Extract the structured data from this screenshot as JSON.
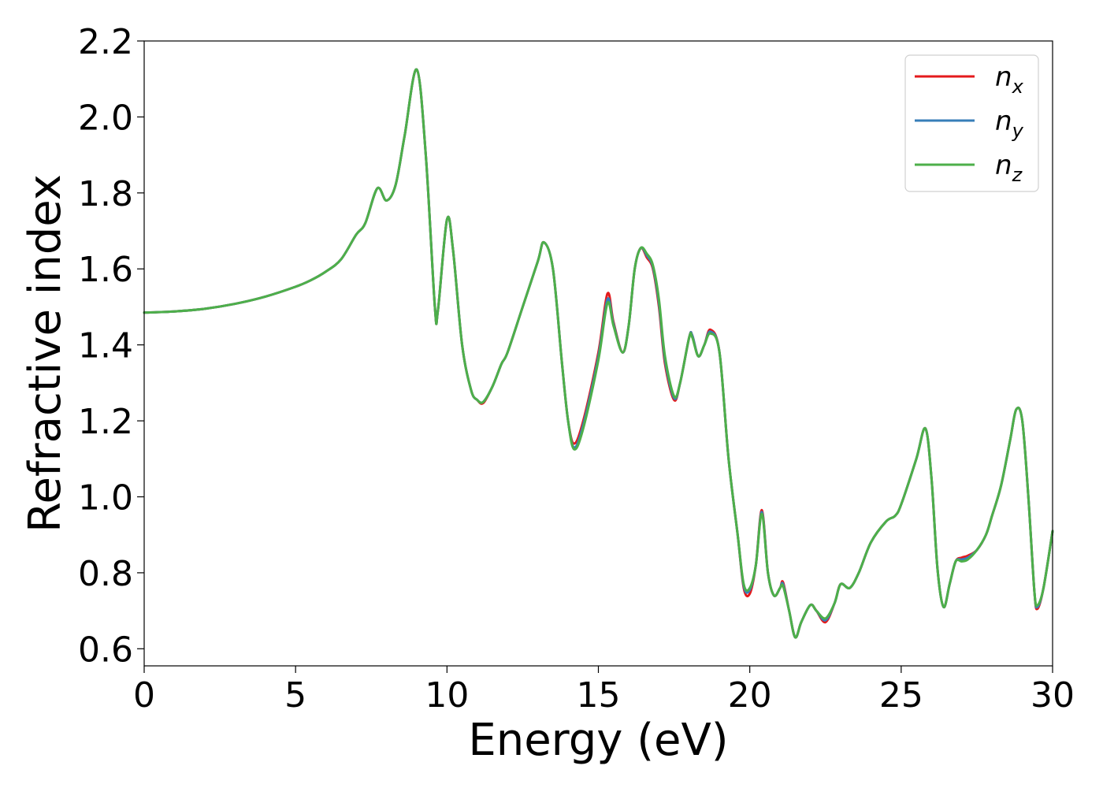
{
  "chart_data": {
    "type": "line",
    "title": "",
    "xlabel": "Energy (eV)",
    "ylabel": "Refractive index",
    "xlim": [
      0,
      30
    ],
    "ylim": [
      0.555,
      2.2
    ],
    "xticks": [
      "0",
      "5",
      "10",
      "15",
      "20",
      "25",
      "30"
    ],
    "yticks": [
      "0.6",
      "0.8",
      "1.0",
      "1.2",
      "1.4",
      "1.6",
      "1.8",
      "2.0",
      "2.2"
    ],
    "grid": false,
    "legend_position": "top-right",
    "series": [
      {
        "name": "n_x",
        "legend_base": "n",
        "legend_sub": "x",
        "color": "#e41a1c",
        "x": [
          0,
          1,
          2,
          3,
          4,
          5,
          5.5,
          6,
          6.5,
          7,
          7.3,
          7.7,
          8,
          8.3,
          8.6,
          9,
          9.3,
          9.6,
          9.7,
          10,
          10.2,
          10.5,
          10.8,
          11,
          11.2,
          11.5,
          11.8,
          12,
          12.5,
          13,
          13.2,
          13.5,
          13.8,
          14,
          14.2,
          14.5,
          15,
          15.3,
          15.5,
          15.8,
          16,
          16.2,
          16.4,
          16.6,
          16.8,
          17,
          17.2,
          17.5,
          17.7,
          18,
          18.1,
          18.3,
          18.5,
          18.7,
          19,
          19.3,
          19.6,
          19.8,
          20,
          20.2,
          20.4,
          20.6,
          20.8,
          21,
          21.1,
          21.3,
          21.5,
          21.7,
          22,
          22.2,
          22.5,
          22.8,
          23,
          23.3,
          23.6,
          24,
          24.5,
          24.8,
          25,
          25.5,
          25.8,
          26,
          26.2,
          26.4,
          26.6,
          26.8,
          27,
          27.2,
          27.5,
          27.8,
          28,
          28.3,
          28.6,
          28.8,
          29,
          29.2,
          29.4,
          29.5,
          29.7,
          30
        ],
        "y": [
          1.485,
          1.488,
          1.495,
          1.508,
          1.527,
          1.553,
          1.57,
          1.593,
          1.625,
          1.69,
          1.72,
          1.812,
          1.78,
          1.82,
          1.95,
          2.125,
          1.9,
          1.5,
          1.49,
          1.73,
          1.65,
          1.4,
          1.28,
          1.255,
          1.247,
          1.29,
          1.35,
          1.38,
          1.5,
          1.62,
          1.67,
          1.6,
          1.35,
          1.2,
          1.14,
          1.2,
          1.38,
          1.535,
          1.46,
          1.38,
          1.45,
          1.6,
          1.655,
          1.63,
          1.6,
          1.5,
          1.35,
          1.255,
          1.3,
          1.42,
          1.425,
          1.37,
          1.4,
          1.44,
          1.38,
          1.1,
          0.9,
          0.76,
          0.745,
          0.82,
          0.965,
          0.8,
          0.74,
          0.76,
          0.775,
          0.7,
          0.63,
          0.67,
          0.715,
          0.7,
          0.67,
          0.72,
          0.77,
          0.76,
          0.8,
          0.88,
          0.935,
          0.95,
          0.98,
          1.1,
          1.18,
          1.05,
          0.81,
          0.71,
          0.77,
          0.83,
          0.84,
          0.845,
          0.86,
          0.9,
          0.95,
          1.03,
          1.15,
          1.23,
          1.2,
          1.0,
          0.75,
          0.705,
          0.76,
          0.91
        ]
      },
      {
        "name": "n_y",
        "legend_base": "n",
        "legend_sub": "y",
        "color": "#377eb8",
        "x": [
          0,
          1,
          2,
          3,
          4,
          5,
          5.5,
          6,
          6.5,
          7,
          7.3,
          7.7,
          8,
          8.3,
          8.6,
          9,
          9.3,
          9.6,
          9.7,
          10,
          10.2,
          10.5,
          10.8,
          11,
          11.2,
          11.5,
          11.8,
          12,
          12.5,
          13,
          13.2,
          13.5,
          13.8,
          14,
          14.2,
          14.5,
          15,
          15.3,
          15.5,
          15.8,
          16,
          16.2,
          16.4,
          16.6,
          16.8,
          17,
          17.2,
          17.5,
          17.7,
          18,
          18.1,
          18.3,
          18.5,
          18.7,
          19,
          19.3,
          19.6,
          19.8,
          20,
          20.2,
          20.4,
          20.6,
          20.8,
          21,
          21.1,
          21.3,
          21.5,
          21.7,
          22,
          22.2,
          22.5,
          22.8,
          23,
          23.3,
          23.6,
          24,
          24.5,
          24.8,
          25,
          25.5,
          25.8,
          26,
          26.2,
          26.4,
          26.6,
          26.8,
          27,
          27.2,
          27.5,
          27.8,
          28,
          28.3,
          28.6,
          28.8,
          29,
          29.2,
          29.4,
          29.5,
          29.7,
          30
        ],
        "y": [
          1.485,
          1.488,
          1.495,
          1.508,
          1.527,
          1.553,
          1.57,
          1.593,
          1.625,
          1.69,
          1.72,
          1.812,
          1.78,
          1.82,
          1.95,
          2.125,
          1.9,
          1.5,
          1.49,
          1.73,
          1.65,
          1.4,
          1.28,
          1.255,
          1.25,
          1.29,
          1.35,
          1.38,
          1.5,
          1.62,
          1.67,
          1.6,
          1.35,
          1.2,
          1.13,
          1.19,
          1.37,
          1.52,
          1.455,
          1.38,
          1.45,
          1.6,
          1.655,
          1.635,
          1.605,
          1.51,
          1.36,
          1.26,
          1.3,
          1.42,
          1.425,
          1.37,
          1.4,
          1.435,
          1.38,
          1.1,
          0.9,
          0.765,
          0.755,
          0.82,
          0.96,
          0.8,
          0.74,
          0.76,
          0.77,
          0.7,
          0.63,
          0.67,
          0.715,
          0.7,
          0.675,
          0.72,
          0.77,
          0.76,
          0.8,
          0.88,
          0.935,
          0.95,
          0.98,
          1.1,
          1.18,
          1.05,
          0.81,
          0.71,
          0.77,
          0.83,
          0.835,
          0.84,
          0.86,
          0.9,
          0.95,
          1.03,
          1.15,
          1.23,
          1.2,
          1.0,
          0.75,
          0.71,
          0.76,
          0.91
        ]
      },
      {
        "name": "n_z",
        "legend_base": "n",
        "legend_sub": "z",
        "color": "#4daf4a",
        "x": [
          0,
          1,
          2,
          3,
          4,
          5,
          5.5,
          6,
          6.5,
          7,
          7.3,
          7.7,
          8,
          8.3,
          8.6,
          9,
          9.3,
          9.6,
          9.7,
          10,
          10.2,
          10.5,
          10.8,
          11,
          11.2,
          11.5,
          11.8,
          12,
          12.5,
          13,
          13.2,
          13.5,
          13.8,
          14,
          14.2,
          14.5,
          15,
          15.3,
          15.5,
          15.8,
          16,
          16.2,
          16.4,
          16.6,
          16.8,
          17,
          17.2,
          17.5,
          17.7,
          18,
          18.1,
          18.3,
          18.5,
          18.7,
          19,
          19.3,
          19.6,
          19.8,
          20,
          20.2,
          20.4,
          20.6,
          20.8,
          21,
          21.1,
          21.3,
          21.5,
          21.7,
          22,
          22.2,
          22.5,
          22.8,
          23,
          23.3,
          23.6,
          24,
          24.5,
          24.8,
          25,
          25.5,
          25.8,
          26,
          26.2,
          26.4,
          26.6,
          26.8,
          27,
          27.2,
          27.5,
          27.8,
          28,
          28.3,
          28.6,
          28.8,
          29,
          29.2,
          29.4,
          29.5,
          29.7,
          30
        ],
        "y": [
          1.485,
          1.488,
          1.495,
          1.508,
          1.527,
          1.553,
          1.57,
          1.593,
          1.625,
          1.69,
          1.72,
          1.812,
          1.78,
          1.82,
          1.95,
          2.125,
          1.9,
          1.5,
          1.49,
          1.73,
          1.65,
          1.4,
          1.28,
          1.255,
          1.25,
          1.29,
          1.35,
          1.38,
          1.5,
          1.62,
          1.67,
          1.6,
          1.35,
          1.2,
          1.125,
          1.18,
          1.36,
          1.51,
          1.45,
          1.38,
          1.45,
          1.6,
          1.655,
          1.64,
          1.61,
          1.52,
          1.37,
          1.265,
          1.3,
          1.42,
          1.42,
          1.37,
          1.4,
          1.43,
          1.38,
          1.1,
          0.9,
          0.77,
          0.76,
          0.82,
          0.955,
          0.8,
          0.74,
          0.76,
          0.765,
          0.7,
          0.63,
          0.67,
          0.715,
          0.7,
          0.68,
          0.72,
          0.77,
          0.76,
          0.8,
          0.88,
          0.935,
          0.95,
          0.98,
          1.1,
          1.18,
          1.05,
          0.81,
          0.71,
          0.77,
          0.83,
          0.83,
          0.835,
          0.86,
          0.9,
          0.95,
          1.03,
          1.15,
          1.23,
          1.2,
          1.0,
          0.75,
          0.715,
          0.76,
          0.91
        ]
      }
    ]
  }
}
